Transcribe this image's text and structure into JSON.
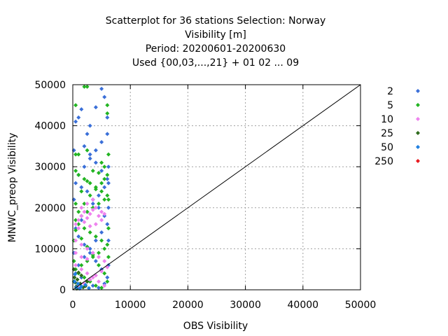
{
  "chart_data": {
    "type": "scatter",
    "title_lines": [
      "Scatterplot for   36 stations Selection: Norway",
      "Visibility [m]",
      "Period: 20200601-20200630",
      "Used {00,03,...,21} + 01 02 ... 09"
    ],
    "xlabel": "OBS Visibility",
    "ylabel": "MNWC_preop Visibility",
    "xlim": [
      0,
      50000
    ],
    "ylim": [
      0,
      50000
    ],
    "x_ticks": [
      0,
      10000,
      20000,
      30000,
      40000,
      50000
    ],
    "y_ticks": [
      0,
      10000,
      20000,
      30000,
      40000,
      50000
    ],
    "grid": true,
    "legend_placement": "right",
    "diagonal_line": true,
    "series": [
      {
        "name": "2",
        "color": "#3a6fd8",
        "points": [
          [
            500,
            41000
          ],
          [
            1000,
            42000
          ],
          [
            1500,
            44000
          ],
          [
            2500,
            38000
          ],
          [
            3000,
            40000
          ],
          [
            4000,
            44500
          ],
          [
            5000,
            49000
          ],
          [
            5500,
            47000
          ],
          [
            6000,
            42000
          ],
          [
            6000,
            38000
          ],
          [
            5000,
            36000
          ],
          [
            4000,
            34000
          ],
          [
            3000,
            32000
          ],
          [
            2000,
            30000
          ],
          [
            1000,
            28000
          ],
          [
            500,
            26000
          ],
          [
            1500,
            25000
          ],
          [
            2500,
            24000
          ],
          [
            3500,
            22000
          ],
          [
            4500,
            20000
          ],
          [
            5500,
            18000
          ],
          [
            6000,
            16000
          ],
          [
            5000,
            14000
          ],
          [
            4000,
            12000
          ],
          [
            3000,
            10000
          ],
          [
            2000,
            8000
          ],
          [
            1000,
            6000
          ],
          [
            500,
            4000
          ],
          [
            1500,
            3000
          ],
          [
            2500,
            2000
          ],
          [
            3500,
            1000
          ],
          [
            4500,
            500
          ],
          [
            5500,
            1500
          ],
          [
            6000,
            3000
          ],
          [
            5000,
            5000
          ],
          [
            4000,
            7000
          ],
          [
            3000,
            9000
          ],
          [
            2000,
            11000
          ],
          [
            1000,
            13000
          ],
          [
            500,
            15000
          ],
          [
            1500,
            17000
          ],
          [
            2500,
            19000
          ],
          [
            3500,
            21000
          ],
          [
            4500,
            23000
          ],
          [
            5500,
            25000
          ],
          [
            6000,
            27000
          ],
          [
            5000,
            29000
          ],
          [
            4000,
            31000
          ],
          [
            3000,
            33000
          ],
          [
            2000,
            35000
          ],
          [
            6200,
            30000
          ],
          [
            6200,
            26000
          ],
          [
            6200,
            20000
          ],
          [
            6200,
            12000
          ],
          [
            6200,
            6000
          ],
          [
            200,
            34000
          ],
          [
            200,
            22000
          ],
          [
            200,
            9000
          ]
        ]
      },
      {
        "name": "5",
        "color": "#22b422",
        "points": [
          [
            2000,
            49500
          ],
          [
            2500,
            49500
          ],
          [
            500,
            45000
          ],
          [
            6000,
            45000
          ],
          [
            6000,
            43000
          ],
          [
            500,
            33000
          ],
          [
            1000,
            33000
          ],
          [
            2500,
            34000
          ],
          [
            5000,
            31000
          ],
          [
            5500,
            30000
          ],
          [
            500,
            29000
          ],
          [
            1000,
            28000
          ],
          [
            2000,
            27000
          ],
          [
            3000,
            26000
          ],
          [
            4000,
            25000
          ],
          [
            5000,
            24000
          ],
          [
            6000,
            23000
          ],
          [
            5500,
            22000
          ],
          [
            4500,
            21000
          ],
          [
            3500,
            20000
          ],
          [
            2500,
            19000
          ],
          [
            1500,
            18000
          ],
          [
            500,
            17000
          ],
          [
            1000,
            16000
          ],
          [
            2000,
            15000
          ],
          [
            3000,
            14000
          ],
          [
            4000,
            13000
          ],
          [
            5000,
            12000
          ],
          [
            6000,
            11000
          ],
          [
            5500,
            10000
          ],
          [
            4500,
            9000
          ],
          [
            3500,
            8000
          ],
          [
            2500,
            7000
          ],
          [
            1500,
            6000
          ],
          [
            500,
            5000
          ],
          [
            1000,
            4000
          ],
          [
            2000,
            3000
          ],
          [
            3000,
            2000
          ],
          [
            4000,
            1000
          ],
          [
            5000,
            500
          ],
          [
            6000,
            2000
          ],
          [
            5500,
            4000
          ],
          [
            4500,
            6000
          ],
          [
            3500,
            8500
          ],
          [
            2500,
            10500
          ],
          [
            1500,
            12500
          ],
          [
            500,
            14500
          ],
          [
            1000,
            19000
          ],
          [
            2000,
            21000
          ],
          [
            3000,
            23000
          ],
          [
            4000,
            24500
          ],
          [
            5000,
            26000
          ],
          [
            6000,
            28000
          ],
          [
            5500,
            27000
          ],
          [
            4500,
            28500
          ],
          [
            3500,
            29000
          ],
          [
            2500,
            26500
          ],
          [
            1500,
            24000
          ],
          [
            500,
            21000
          ],
          [
            200,
            12000
          ],
          [
            200,
            7000
          ],
          [
            200,
            2000
          ],
          [
            6200,
            8000
          ],
          [
            6200,
            15000
          ],
          [
            6200,
            22000
          ],
          [
            6200,
            33000
          ]
        ]
      },
      {
        "name": "10",
        "color": "#ee82ee",
        "points": [
          [
            500,
            16000
          ],
          [
            1000,
            17000
          ],
          [
            1500,
            18000
          ],
          [
            2000,
            19000
          ],
          [
            2500,
            17500
          ],
          [
            3000,
            18500
          ],
          [
            3500,
            19500
          ],
          [
            4000,
            20000
          ],
          [
            4500,
            18000
          ],
          [
            5000,
            19000
          ],
          [
            5500,
            18500
          ],
          [
            1000,
            15000
          ],
          [
            2000,
            16500
          ],
          [
            3000,
            15500
          ],
          [
            4000,
            16000
          ],
          [
            5000,
            17000
          ],
          [
            500,
            12000
          ],
          [
            1500,
            11000
          ],
          [
            2500,
            10000
          ],
          [
            3500,
            9000
          ],
          [
            4500,
            8000
          ],
          [
            5500,
            7000
          ],
          [
            500,
            6000
          ],
          [
            1500,
            5000
          ],
          [
            2500,
            4000
          ],
          [
            3500,
            3000
          ],
          [
            4500,
            2000
          ],
          [
            5500,
            1000
          ],
          [
            1000,
            500
          ],
          [
            2000,
            1500
          ],
          [
            3000,
            2500
          ],
          [
            4000,
            3500
          ],
          [
            5000,
            4500
          ],
          [
            6000,
            5500
          ],
          [
            500,
            9000
          ],
          [
            1500,
            8000
          ],
          [
            2500,
            7500
          ],
          [
            1500,
            20000
          ],
          [
            2500,
            21000
          ],
          [
            3500,
            22000
          ]
        ]
      },
      {
        "name": "25",
        "color": "#2e6b1c",
        "points": [
          [
            300,
            3000
          ],
          [
            800,
            2500
          ],
          [
            1300,
            1500
          ],
          [
            600,
            800
          ],
          [
            1800,
            600
          ],
          [
            2500,
            2000
          ],
          [
            200,
            5000
          ],
          [
            1000,
            4200
          ],
          [
            400,
            1800
          ],
          [
            1500,
            3500
          ],
          [
            2200,
            900
          ],
          [
            700,
            300
          ]
        ]
      },
      {
        "name": "50",
        "color": "#1f7fe0",
        "points": [
          [
            300,
            2000
          ],
          [
            900,
            1500
          ],
          [
            1500,
            800
          ],
          [
            2200,
            1200
          ],
          [
            2800,
            400
          ],
          [
            600,
            600
          ],
          [
            1200,
            300
          ],
          [
            400,
            3800
          ]
        ]
      },
      {
        "name": "250",
        "color": "#e8181d",
        "points": []
      }
    ]
  }
}
